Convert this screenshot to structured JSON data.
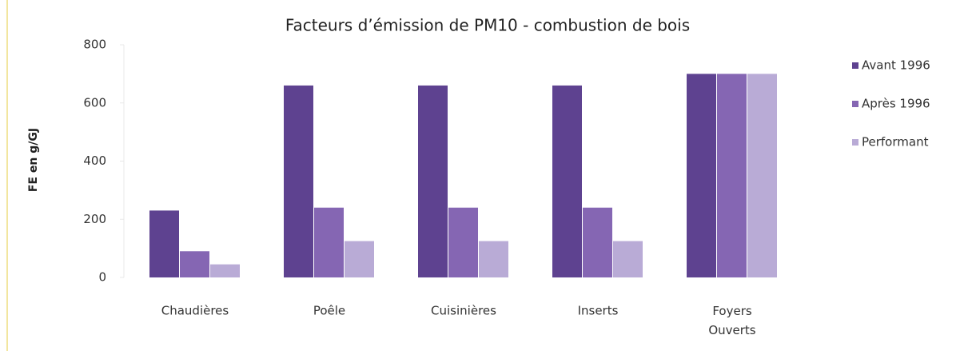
{
  "chart_data": {
    "type": "bar",
    "title": "Facteurs d’émission de PM10 - combustion de bois",
    "y_label": "FE en g/GJ",
    "categories": [
      "Chaudières",
      "Poêle",
      "Cuisinières",
      "Inserts",
      "Foyers Ouverts"
    ],
    "series": [
      {
        "name": "Avant 1996",
        "color": "#5e4290",
        "values": [
          230,
          660,
          660,
          660,
          700
        ]
      },
      {
        "name": "Après 1996",
        "color": "#8566b3",
        "values": [
          90,
          240,
          240,
          240,
          700
        ]
      },
      {
        "name": "Performant",
        "color": "#b9abd6",
        "values": [
          45,
          125,
          125,
          125,
          700
        ]
      }
    ],
    "ylim": [
      0,
      800
    ],
    "yticks": [
      0,
      200,
      400,
      600,
      800
    ],
    "grid": false,
    "legend": "right"
  }
}
